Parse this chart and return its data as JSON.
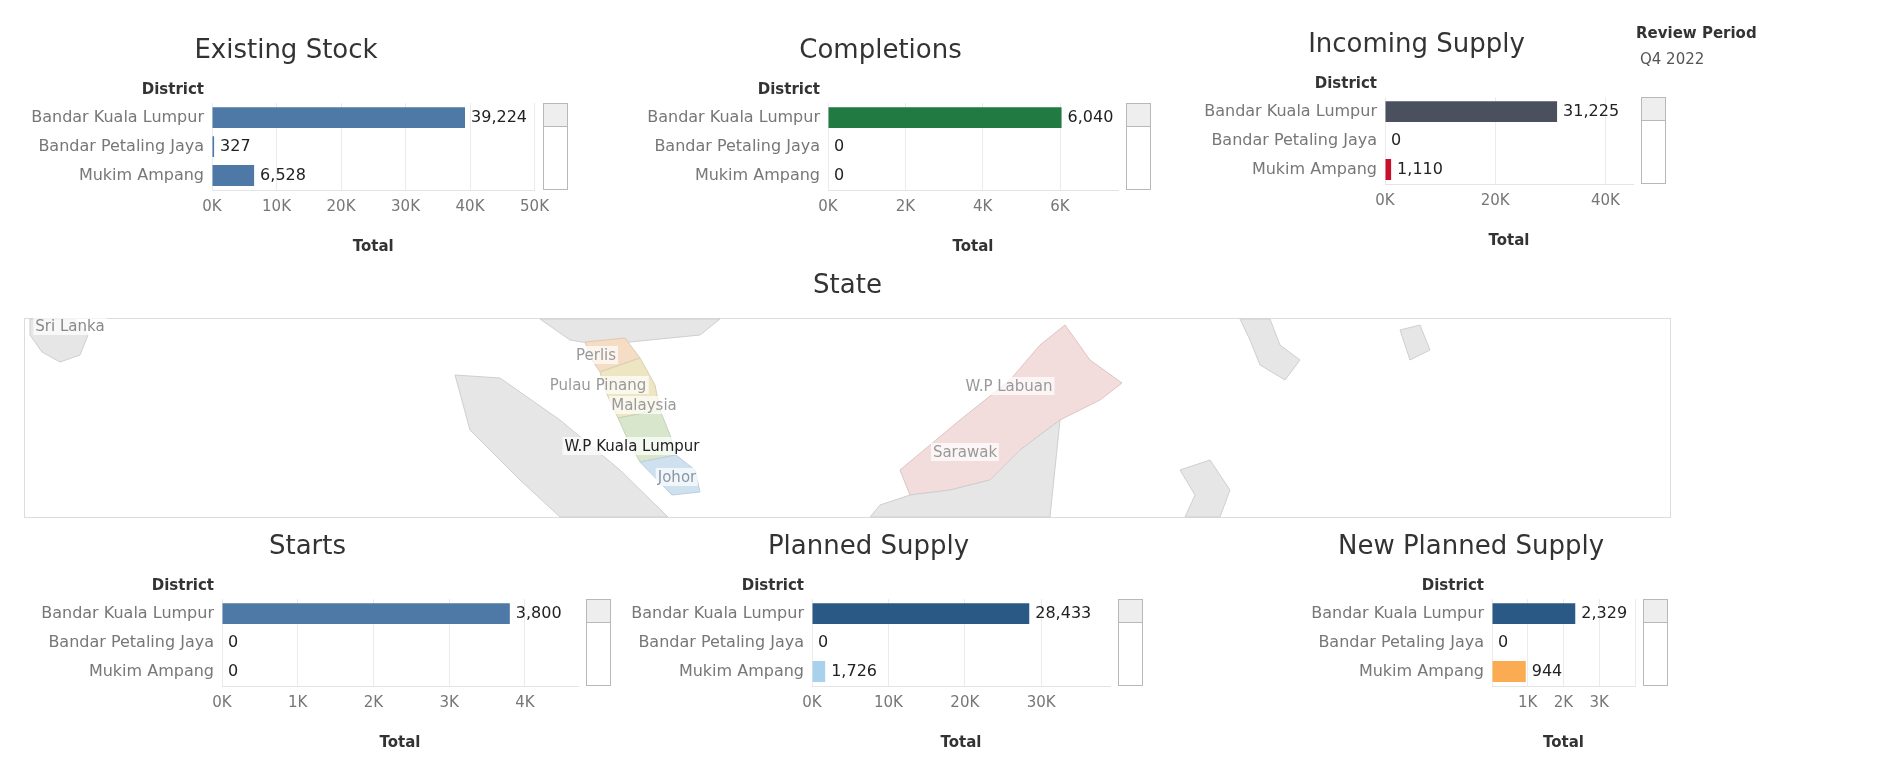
{
  "chart_data": [
    {
      "type": "bar",
      "title": "Existing Stock",
      "xlabel": "Total",
      "ylabel": "District",
      "orientation": "horizontal",
      "categories": [
        "Bandar Kuala Lumpur",
        "Bandar Petaling Jaya",
        "Mukim Ampang"
      ],
      "values": [
        39224,
        327,
        6528
      ],
      "colors": [
        "#4e79a7",
        "#4e79a7",
        "#4e79a7"
      ],
      "value_labels": [
        "39,224",
        "327",
        "6,528"
      ],
      "xlim": [
        0,
        50000
      ],
      "xticks": [
        {
          "value": 0,
          "label": "0K"
        },
        {
          "value": 10000,
          "label": "10K"
        },
        {
          "value": 20000,
          "label": "20K"
        },
        {
          "value": 30000,
          "label": "30K"
        },
        {
          "value": 40000,
          "label": "40K"
        },
        {
          "value": 50000,
          "label": "50K"
        }
      ],
      "grid": "x"
    },
    {
      "type": "bar",
      "title": "Completions",
      "xlabel": "Total",
      "ylabel": "District",
      "orientation": "horizontal",
      "categories": [
        "Bandar Kuala Lumpur",
        "Bandar Petaling Jaya",
        "Mukim Ampang"
      ],
      "values": [
        6040,
        0,
        0
      ],
      "colors": [
        "#217a41",
        "#e8a3ab",
        "#e8a3ab"
      ],
      "value_labels": [
        "6,040",
        "0",
        "0"
      ],
      "xlim": [
        0,
        7500
      ],
      "xticks": [
        {
          "value": 0,
          "label": "0K"
        },
        {
          "value": 2000,
          "label": "2K"
        },
        {
          "value": 4000,
          "label": "4K"
        },
        {
          "value": 6000,
          "label": "6K"
        }
      ],
      "grid": "x"
    },
    {
      "type": "bar",
      "title": "Incoming Supply",
      "xlabel": "Total",
      "ylabel": "District",
      "orientation": "horizontal",
      "categories": [
        "Bandar Kuala Lumpur",
        "Bandar Petaling Jaya",
        "Mukim Ampang"
      ],
      "values": [
        31225,
        0,
        1110
      ],
      "colors": [
        "#4a505e",
        "#e8a3ab",
        "#c8102e"
      ],
      "value_labels": [
        "31,225",
        "0",
        "1,110"
      ],
      "xlim": [
        0,
        45000
      ],
      "xticks": [
        {
          "value": 0,
          "label": "0K"
        },
        {
          "value": 20000,
          "label": "20K"
        },
        {
          "value": 40000,
          "label": "40K"
        }
      ],
      "grid": "x"
    },
    {
      "type": "other",
      "title": "Review Period",
      "annotations": [
        "Q4 2022"
      ]
    },
    {
      "type": "other",
      "title": "State",
      "annotations": [
        "Sri Lanka",
        "Perlis",
        "Pulau Pinang",
        "Malaysia",
        "W.P Kuala Lumpur",
        "Johor",
        "W.P Labuan",
        "Sarawak"
      ]
    },
    {
      "type": "bar",
      "title": "Starts",
      "xlabel": "Total",
      "ylabel": "District",
      "orientation": "horizontal",
      "categories": [
        "Bandar Kuala Lumpur",
        "Bandar Petaling Jaya",
        "Mukim Ampang"
      ],
      "values": [
        3800,
        0,
        0
      ],
      "colors": [
        "#4e79a7",
        "#a8c8e8",
        "#a8c8e8"
      ],
      "value_labels": [
        "3,800",
        "0",
        "0"
      ],
      "xlim": [
        0,
        4700
      ],
      "xticks": [
        {
          "value": 0,
          "label": "0K"
        },
        {
          "value": 1000,
          "label": "1K"
        },
        {
          "value": 2000,
          "label": "2K"
        },
        {
          "value": 3000,
          "label": "3K"
        },
        {
          "value": 4000,
          "label": "4K"
        }
      ],
      "grid": "x"
    },
    {
      "type": "bar",
      "title": "Planned Supply",
      "xlabel": "Total",
      "ylabel": "District",
      "orientation": "horizontal",
      "categories": [
        "Bandar Kuala Lumpur",
        "Bandar Petaling Jaya",
        "Mukim Ampang"
      ],
      "values": [
        28433,
        0,
        1726
      ],
      "colors": [
        "#2b5986",
        "#dbe9f6",
        "#a9d1ec"
      ],
      "value_labels": [
        "28,433",
        "0",
        "1,726"
      ],
      "xlim": [
        0,
        39000
      ],
      "xticks": [
        {
          "value": 0,
          "label": "0K"
        },
        {
          "value": 10000,
          "label": "10K"
        },
        {
          "value": 20000,
          "label": "20K"
        },
        {
          "value": 30000,
          "label": "30K"
        }
      ],
      "grid": "x"
    },
    {
      "type": "bar",
      "title": "New Planned Supply",
      "xlabel": "Total",
      "ylabel": "District",
      "orientation": "horizontal",
      "categories": [
        "Bandar Kuala Lumpur",
        "Bandar Petaling Jaya",
        "Mukim Ampang"
      ],
      "values": [
        2329,
        0,
        944
      ],
      "colors": [
        "#2b5986",
        "#e99a8a",
        "#fbab52"
      ],
      "value_labels": [
        "2,329",
        "0",
        "944"
      ],
      "xlim": [
        0,
        4000
      ],
      "xticks": [
        {
          "value": 0,
          "label": null
        },
        {
          "value": 1000,
          "label": "1K"
        },
        {
          "value": 2000,
          "label": "2K"
        },
        {
          "value": 3000,
          "label": "3K"
        },
        {
          "value": 4000,
          "label": null
        }
      ],
      "grid": "x"
    }
  ]
}
